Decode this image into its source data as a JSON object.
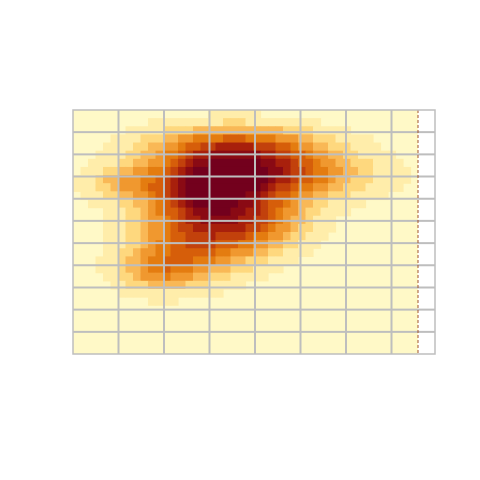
{
  "chart_data": {
    "type": "heatmap",
    "title": "",
    "xlabel": "",
    "ylabel": "",
    "axes": false,
    "grid": true,
    "grid_color": "#bebebe",
    "border_color": "#bebebe",
    "frame_color": "#a0522d",
    "frame_style": "dashed",
    "palette": [
      "#fff9c7",
      "#ffedaa",
      "#fed87e",
      "#f9b856",
      "#f0982f",
      "#e47c10",
      "#d65e0a",
      "#c2410c",
      "#a8200c",
      "#8a0a14",
      "#73001d"
    ],
    "value_range": [
      0,
      10
    ],
    "cols": 46,
    "rows": 30,
    "grid_divisions": {
      "x": 8,
      "y": 11
    },
    "hotspots": [
      {
        "x": 0.47,
        "y": 0.16,
        "sx": 0.17,
        "sy": 0.065,
        "amp": 6.2
      },
      {
        "x": 0.57,
        "y": 0.27,
        "sx": 0.18,
        "sy": 0.07,
        "amp": 6.0
      },
      {
        "x": 0.4,
        "y": 0.39,
        "sx": 0.13,
        "sy": 0.1,
        "amp": 6.5
      },
      {
        "x": 0.38,
        "y": 0.3,
        "sx": 0.1,
        "sy": 0.07,
        "amp": 3.2
      },
      {
        "x": 0.36,
        "y": 0.56,
        "sx": 0.12,
        "sy": 0.09,
        "amp": 4.5
      },
      {
        "x": 0.25,
        "y": 0.66,
        "sx": 0.08,
        "sy": 0.06,
        "amp": 3.5
      },
      {
        "x": 0.55,
        "y": 0.46,
        "sx": 0.1,
        "sy": 0.08,
        "amp": 3.0
      },
      {
        "x": 0.15,
        "y": 0.3,
        "sx": 0.08,
        "sy": 0.05,
        "amp": 2.5
      }
    ]
  }
}
